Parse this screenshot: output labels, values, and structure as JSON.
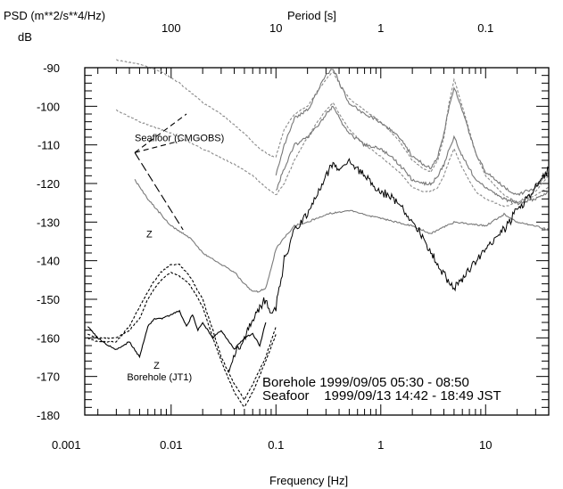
{
  "chart_data": {
    "type": "line",
    "title": "",
    "ylabel_units": "PSD (m**2/s**4/Hz)",
    "ylabel_db": "dB",
    "xlabel": "Frequency [Hz]",
    "x2label": "Period [s]",
    "xscale": "log",
    "xlim": [
      0.0015,
      40
    ],
    "ylim": [
      -180,
      -90
    ],
    "grid": false,
    "x_ticks": [
      {
        "value": 0.001,
        "label": "0.001"
      },
      {
        "value": 0.01,
        "label": "0.01"
      },
      {
        "value": 0.1,
        "label": "0.1"
      },
      {
        "value": 1,
        "label": "1"
      },
      {
        "value": 10,
        "label": "10"
      }
    ],
    "period_ticks": [
      {
        "value": 100,
        "label": "100"
      },
      {
        "value": 10,
        "label": "10"
      },
      {
        "value": 1,
        "label": "1"
      },
      {
        "value": 0.1,
        "label": "0.1"
      }
    ],
    "y_ticks": [
      -90,
      -100,
      -110,
      -120,
      -130,
      -140,
      -150,
      -160,
      -170,
      -180
    ],
    "series": [
      {
        "color": "#8a8a8a",
        "dash": "3,2",
        "noise": 0.4,
        "x": [
          0.003,
          0.005,
          0.008,
          0.012,
          0.02,
          0.03,
          0.05,
          0.07,
          0.09,
          0.1,
          0.12,
          0.15,
          0.2,
          0.25,
          0.3,
          0.35,
          0.4,
          0.5,
          0.7,
          1.0,
          1.5,
          2.0,
          2.5,
          3.0,
          3.5,
          4.0,
          4.5,
          5.0,
          6.0,
          8.0,
          10,
          15,
          20,
          30,
          40
        ],
        "y": [
          -88,
          -89,
          -91,
          -94,
          -99,
          -102,
          -107,
          -111,
          -113,
          -113,
          -106,
          -102,
          -100,
          -96,
          -93,
          -91,
          -94,
          -98,
          -101,
          -104,
          -109,
          -114,
          -116,
          -117,
          -114,
          -108,
          -99,
          -93,
          -100,
          -112,
          -118,
          -123,
          -125,
          -122,
          -118
        ]
      },
      {
        "color": "#8a8a8a",
        "dash": "3,2",
        "noise": 0.4,
        "x": [
          0.003,
          0.005,
          0.01,
          0.02,
          0.04,
          0.06,
          0.08,
          0.1,
          0.12,
          0.15,
          0.2,
          0.25,
          0.3,
          0.35,
          0.4,
          0.5,
          0.7,
          1.0,
          1.5,
          2.0,
          2.5,
          3.0,
          3.5,
          4.0,
          4.5,
          5.0,
          6.0,
          8.0,
          10,
          15,
          20,
          30,
          40
        ],
        "y": [
          -101,
          -104,
          -107,
          -111,
          -115,
          -118,
          -121,
          -123,
          -120,
          -114,
          -108,
          -104,
          -101,
          -99,
          -102,
          -106,
          -110,
          -113,
          -117,
          -121,
          -122,
          -122,
          -121,
          -118,
          -114,
          -111,
          -116,
          -122,
          -124,
          -126,
          -125,
          -123,
          -121
        ]
      },
      {
        "color": "#777777",
        "dash": "",
        "noise": 1.2,
        "x": [
          0.1,
          0.12,
          0.15,
          0.2,
          0.25,
          0.3,
          0.35,
          0.4,
          0.5,
          0.7,
          1.0,
          1.5,
          2.0,
          2.5,
          3.0,
          3.5,
          4.0,
          4.5,
          5.0,
          6.0,
          8.0,
          10,
          15,
          20,
          30,
          40
        ],
        "y": [
          -118,
          -110,
          -103,
          -101,
          -96,
          -92,
          -90,
          -94,
          -99,
          -102,
          -104,
          -108,
          -113,
          -115,
          -116,
          -113,
          -107,
          -100,
          -95,
          -101,
          -112,
          -117,
          -121,
          -123,
          -121,
          -117
        ]
      },
      {
        "color": "#777777",
        "dash": "",
        "noise": 1.2,
        "x": [
          0.1,
          0.12,
          0.15,
          0.2,
          0.25,
          0.3,
          0.35,
          0.4,
          0.5,
          0.7,
          1.0,
          1.5,
          2.0,
          2.5,
          3.0,
          3.5,
          4.0,
          4.5,
          5.0,
          6.0,
          8.0,
          10,
          15,
          20,
          30,
          40
        ],
        "y": [
          -122,
          -116,
          -110,
          -108,
          -105,
          -102,
          -100,
          -103,
          -107,
          -110,
          -111,
          -115,
          -119,
          -120,
          -120,
          -118,
          -115,
          -111,
          -108,
          -113,
          -119,
          -121,
          -124,
          -125,
          -124,
          -122
        ]
      },
      {
        "color": "#7a7a7a",
        "dash": "",
        "noise": 0.6,
        "x": [
          0.0045,
          0.006,
          0.008,
          0.01,
          0.015,
          0.02,
          0.03,
          0.04,
          0.05,
          0.06,
          0.07,
          0.08,
          0.09,
          0.1,
          0.12,
          0.15,
          0.2,
          0.25,
          0.3,
          0.5,
          0.7,
          1,
          2,
          3,
          5,
          10,
          15,
          20,
          30,
          40
        ],
        "y": [
          -119,
          -124,
          -128,
          -131,
          -134,
          -138,
          -141,
          -143,
          -146,
          -148,
          -148,
          -147,
          -142,
          -137,
          -134,
          -131,
          -130,
          -129,
          -128,
          -127,
          -128,
          -129,
          -131,
          -133,
          -130,
          -131,
          -128,
          -130,
          -131,
          -132
        ]
      },
      {
        "color": "#000000",
        "dash": "",
        "noise": 3,
        "x": [
          0.035,
          0.05,
          0.06,
          0.07,
          0.08,
          0.09,
          0.1,
          0.12,
          0.15,
          0.2,
          0.25,
          0.3,
          0.35,
          0.4,
          0.5,
          0.7,
          1.0,
          1.5,
          2.0,
          2.5,
          3.0,
          3.5,
          4.0,
          4.5,
          5.0,
          6.0,
          8.0,
          10,
          15,
          20,
          30,
          40
        ],
        "y": [
          -168,
          -160,
          -156,
          -152,
          -150,
          -154,
          -152,
          -140,
          -132,
          -128,
          -122,
          -118,
          -115,
          -116,
          -114,
          -118,
          -122,
          -125,
          -130,
          -134,
          -138,
          -141,
          -143,
          -146,
          -147,
          -145,
          -140,
          -137,
          -132,
          -127,
          -121,
          -116
        ]
      },
      {
        "color": "#000000",
        "dash": "",
        "noise": 0.5,
        "x": [
          0.0016,
          0.002,
          0.0025,
          0.003,
          0.004,
          0.005,
          0.006,
          0.007,
          0.008,
          0.01,
          0.012,
          0.014,
          0.016,
          0.018,
          0.02,
          0.025,
          0.03,
          0.04,
          0.05,
          0.06,
          0.07,
          0.08
        ],
        "y": [
          -157,
          -160,
          -162,
          -163,
          -161,
          -165,
          -157,
          -155,
          -155,
          -154,
          -153,
          -157,
          -154,
          -158,
          -156,
          -160,
          -158,
          -163,
          -160,
          -159,
          -162,
          -156
        ]
      },
      {
        "color": "#000000",
        "dash": "3,2",
        "noise": 0.5,
        "x": [
          0.0016,
          0.002,
          0.003,
          0.004,
          0.005,
          0.006,
          0.007,
          0.008,
          0.01,
          0.012,
          0.015,
          0.02,
          0.025,
          0.03,
          0.04,
          0.05,
          0.06,
          0.08,
          0.1
        ],
        "y": [
          -160,
          -161,
          -161,
          -157,
          -152,
          -148,
          -145,
          -143,
          -141,
          -141,
          -144,
          -150,
          -158,
          -165,
          -172,
          -176,
          -172,
          -165,
          -157
        ]
      },
      {
        "color": "#000000",
        "dash": "3,2",
        "noise": 0.5,
        "x": [
          0.0016,
          0.002,
          0.003,
          0.004,
          0.005,
          0.006,
          0.007,
          0.008,
          0.01,
          0.012,
          0.015,
          0.02,
          0.025,
          0.03,
          0.04,
          0.05,
          0.06,
          0.08,
          0.1
        ],
        "y": [
          -159,
          -160,
          -160,
          -158,
          -155,
          -150,
          -147,
          -145,
          -143,
          -144,
          -146,
          -152,
          -160,
          -166,
          -174,
          -178,
          -174,
          -166,
          -159
        ]
      }
    ],
    "annotations": [
      {
        "text": "Seafloor (CMGOBS)",
        "x": 0.0045,
        "y": -109,
        "size": "sm"
      },
      {
        "text": "Z",
        "x": 0.0058,
        "y": -134,
        "size": "sm"
      },
      {
        "text": "Z",
        "x": 0.0068,
        "y": -168,
        "size": "sm"
      },
      {
        "text": "Borehole (JT1)",
        "x": 0.0038,
        "y": -171,
        "size": "sm"
      }
    ],
    "legend": [
      {
        "text": "Borehole 1999/09/05 05:30 - 08:50"
      },
      {
        "text": "Seafoor    1999/09/13 14:42 - 18:49 JST"
      }
    ],
    "leader_lines": [
      {
        "x1": 0.0045,
        "y1": -112,
        "x2": 0.012,
        "y2": -109,
        "dash": "6,4"
      },
      {
        "x1": 0.0045,
        "y1": -112,
        "x2": 0.014,
        "y2": -102,
        "dash": "6,4"
      },
      {
        "x1": 0.0045,
        "y1": -112,
        "x2": 0.013,
        "y2": -132,
        "dash": "10,4"
      }
    ]
  }
}
